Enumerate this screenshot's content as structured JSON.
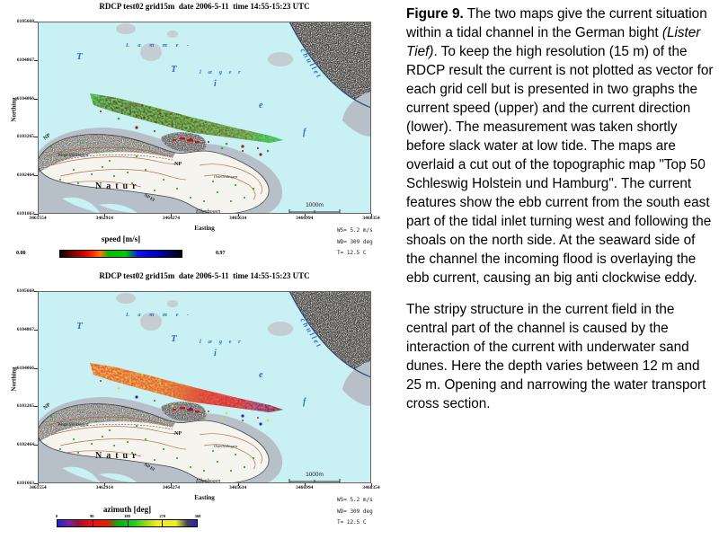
{
  "palette": {
    "water": "#c9f0f2",
    "flats_gray": "#b7c0c8",
    "shoal_gray": "#c3cdd2",
    "coast_blue": "#2a4a7a",
    "map_label_blue": "#2f6fd0",
    "land_white": "#f6f4ef"
  },
  "maps": {
    "shared": {
      "title": "RDCP test02 grid15m  date 2006-5-11  time 14:55-15:23 UTC",
      "xlabel": "Easting",
      "ylabel": "Northing",
      "x_ticks": [
        "3461554",
        "3462914",
        "3464274",
        "3465634",
        "3466994",
        "3468354"
      ],
      "y_ticks": [
        "6105668",
        "6104867",
        "6104066",
        "6103265",
        "6102464",
        "6101663"
      ],
      "scale_label": "1000m",
      "annotations": [
        "WS= 5.2 m/s",
        "WD= 309 deg",
        "T= 12.5 C"
      ],
      "water_labels": [
        {
          "text": "T"
        },
        {
          "text": "L a m m e -"
        },
        {
          "text": "l æ g e r"
        },
        {
          "text": "T"
        },
        {
          "text": "i"
        },
        {
          "text": "e"
        },
        {
          "text": "f"
        },
        {
          "text": "chullet"
        }
      ],
      "island_labels": [
        {
          "text": "NP"
        },
        {
          "text": "Westellenbogen"
        },
        {
          "text": "NP"
        },
        {
          "text": "Natur"
        },
        {
          "text": "NP El"
        },
        {
          "text": "Ellenbogen"
        },
        {
          "text": "Ostellenbogen"
        }
      ]
    },
    "upper": {
      "quantity": "current speed",
      "colorbar": {
        "title": "speed [m/s]",
        "min": "0.00",
        "max": "0.97",
        "stops": [
          [
            "#000000",
            0
          ],
          [
            "#660000",
            8
          ],
          [
            "#cc0000",
            19
          ],
          [
            "#ff3300",
            28
          ],
          [
            "#ff7700",
            33
          ],
          [
            "#00bb00",
            40
          ],
          [
            "#00cc00",
            54
          ],
          [
            "#1111ee",
            64
          ],
          [
            "#0000cc",
            78
          ],
          [
            "#000066",
            90
          ],
          [
            "#000000",
            100
          ]
        ]
      }
    },
    "lower": {
      "quantity": "current direction",
      "colorbar": {
        "title": "azimuth [deg]",
        "ticks": [
          "0",
          "90",
          "180",
          "270",
          "360"
        ],
        "stops": [
          [
            "#2222cc",
            0
          ],
          [
            "#7722aa",
            8
          ],
          [
            "#991133",
            15
          ],
          [
            "#ee1111",
            24
          ],
          [
            "#dd2200",
            36
          ],
          [
            "#11aa11",
            43
          ],
          [
            "#22cc22",
            55
          ],
          [
            "#aadd11",
            65
          ],
          [
            "#eeee22",
            71
          ],
          [
            "#eeee22",
            85
          ],
          [
            "#444455",
            93
          ],
          [
            "#2222cc",
            100
          ]
        ]
      }
    }
  },
  "caption": {
    "paragraphs": [
      {
        "segments": [
          {
            "text": "Figure 9.",
            "bold": true
          },
          {
            "text": " The two maps give the current situation within a tidal channel in the German bight "
          },
          {
            "text": "(Lister Tief)",
            "italic": true
          },
          {
            "text": ". To keep the high resolution (15 m) of the RDCP result the current is not plotted as vector for each grid cell but is presented in two graphs the current speed (upper) and the current direction (lower). The measurement was taken shortly before slack water at low tide. The maps are overlaid a cut out of the topographic map \"Top 50 Schleswig Holstein und Hamburg\". The current features show the ebb current from the south east part of the tidal inlet turning west and following the shoals on the north side. At the seaward side of the channel the incoming flood is overlaying the ebb current, causing an big anti clockwise eddy."
          }
        ]
      },
      {
        "segments": [
          {
            "text": "The stripy structure in the current field in the central part of the channel is caused by the interaction of the current with underwater sand dunes. Here the depth varies between 12 m and 25 m. Opening and narrowing the water transport cross section."
          }
        ]
      }
    ]
  }
}
